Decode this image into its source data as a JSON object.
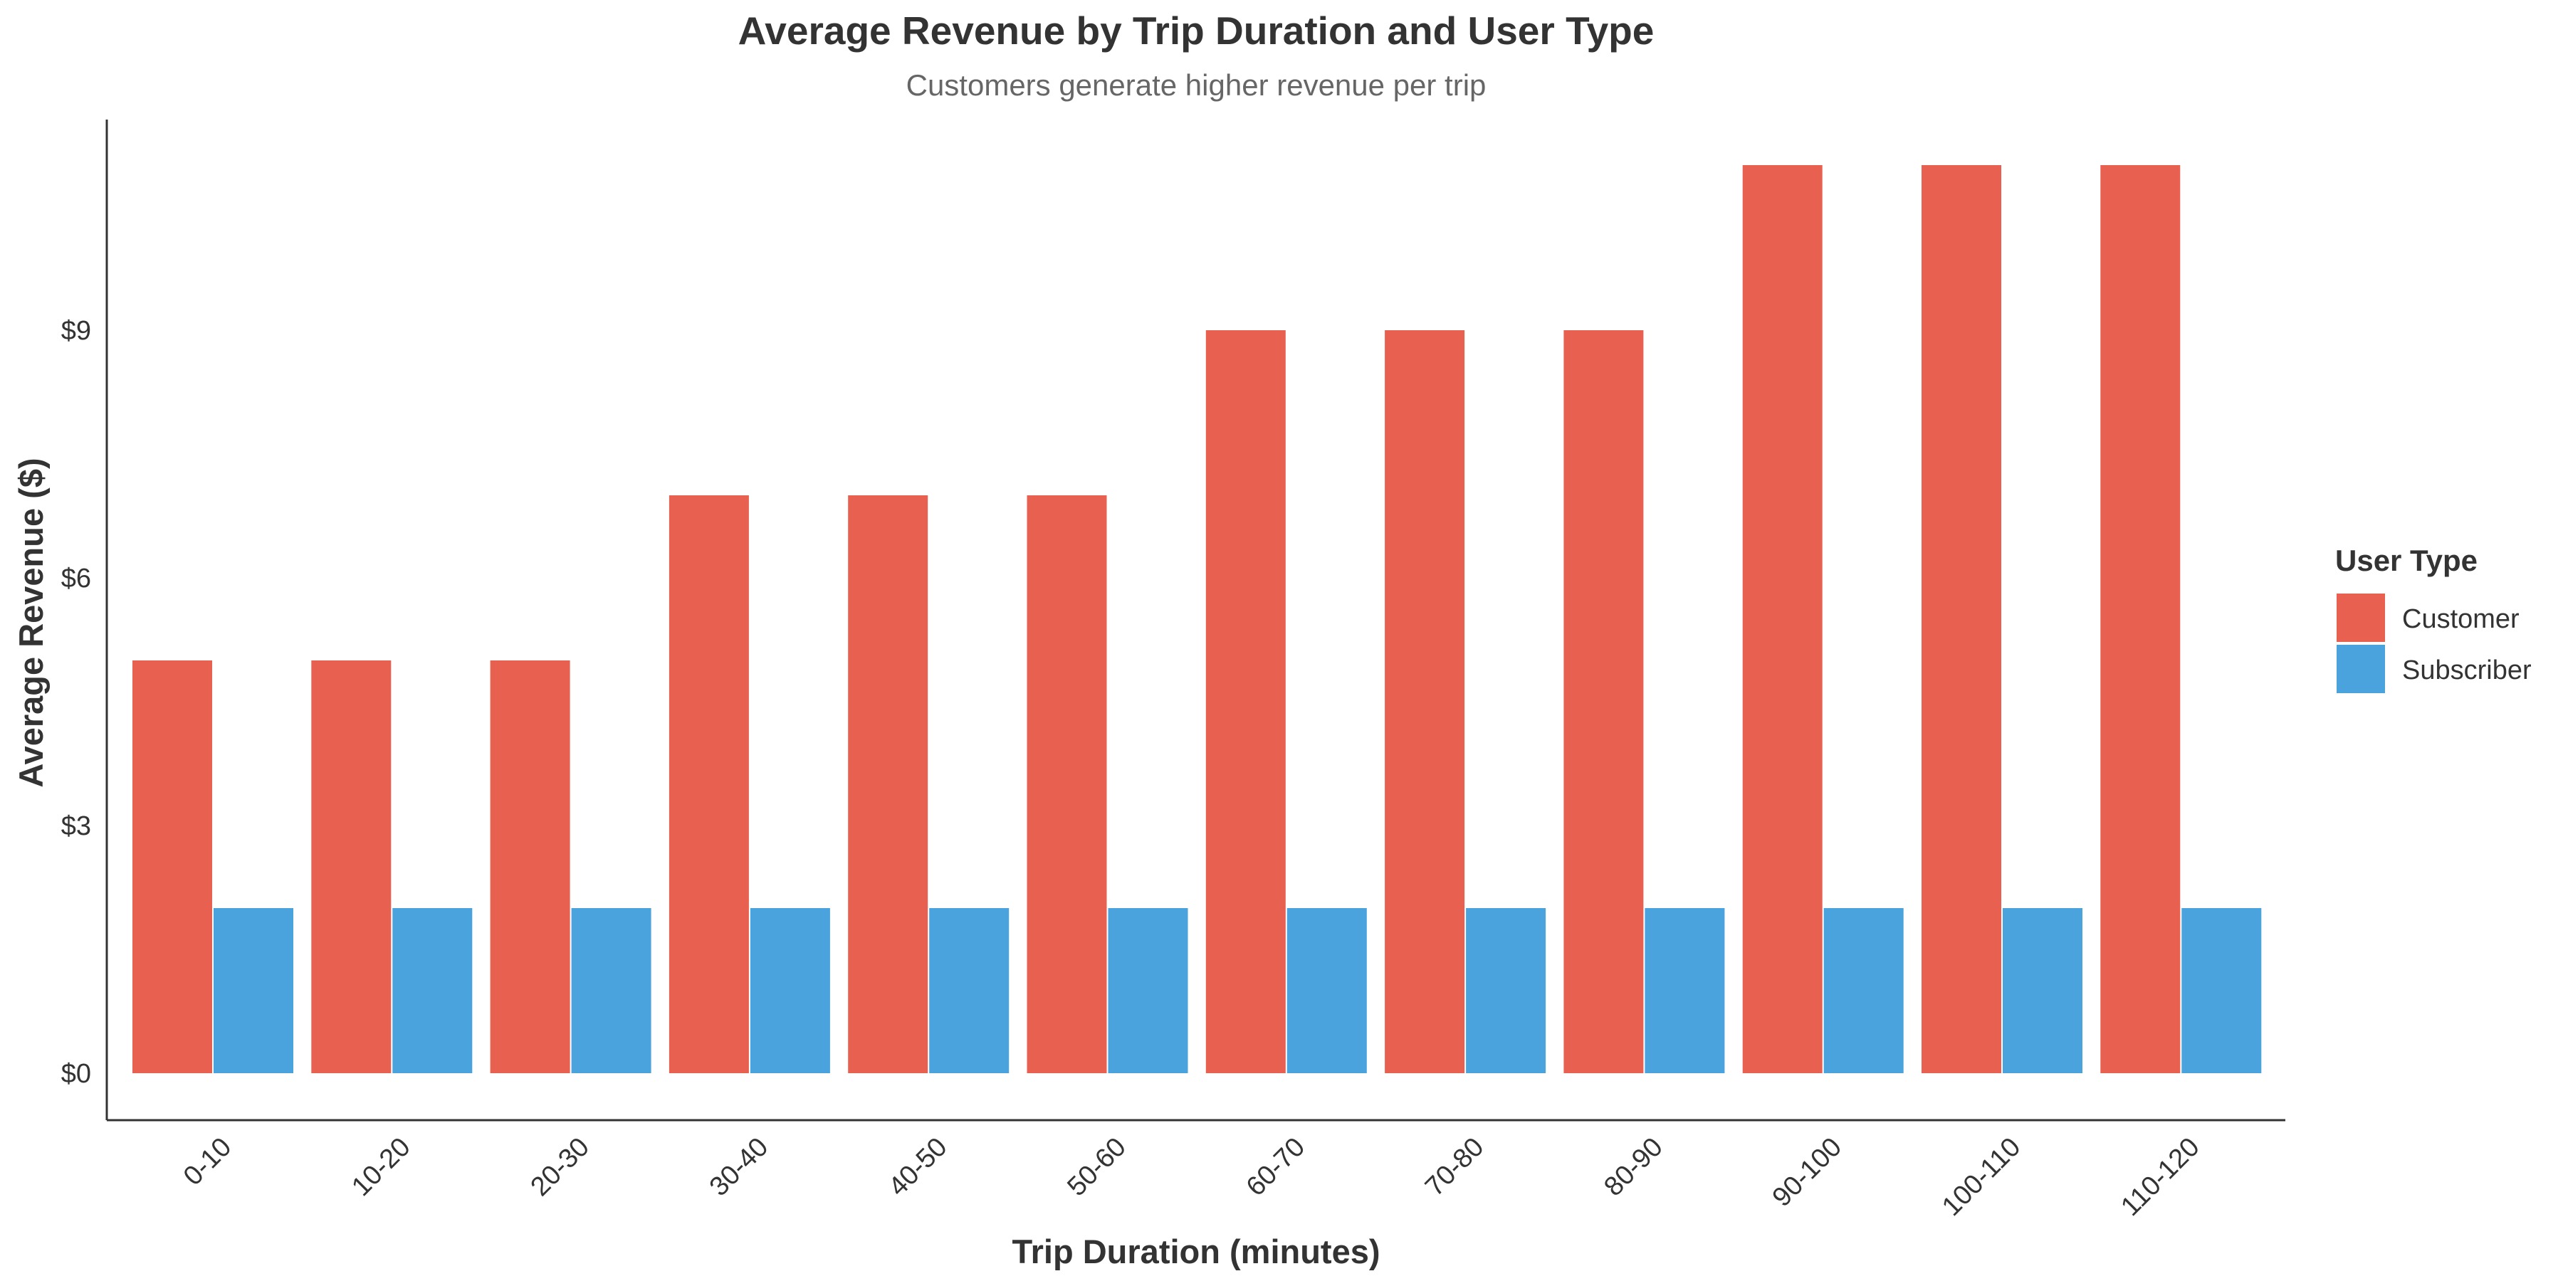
{
  "chart_data": {
    "type": "bar",
    "title": "Average Revenue by Trip Duration and User Type",
    "subtitle": "Customers generate higher revenue per trip",
    "xlabel": "Trip Duration (minutes)",
    "ylabel": "Average Revenue ($)",
    "categories": [
      "0-10",
      "10-20",
      "20-30",
      "30-40",
      "40-50",
      "50-60",
      "60-70",
      "70-80",
      "80-90",
      "90-100",
      "100-110",
      "110-120"
    ],
    "series": [
      {
        "name": "Customer",
        "color": "#E8604F",
        "values": [
          5,
          5,
          5,
          7,
          7,
          7,
          9,
          9,
          9,
          11,
          11,
          11
        ]
      },
      {
        "name": "Subscriber",
        "color": "#4BA3DE",
        "values": [
          2,
          2,
          2,
          2,
          2,
          2,
          2,
          2,
          2,
          2,
          2,
          2
        ]
      }
    ],
    "ylim": [
      0,
      11.5
    ],
    "yticks": [
      0,
      3,
      6,
      9
    ],
    "ytick_labels": [
      "$0",
      "$3",
      "$6",
      "$9"
    ],
    "grid": false,
    "legend": {
      "title": "User Type",
      "position": "right"
    }
  }
}
